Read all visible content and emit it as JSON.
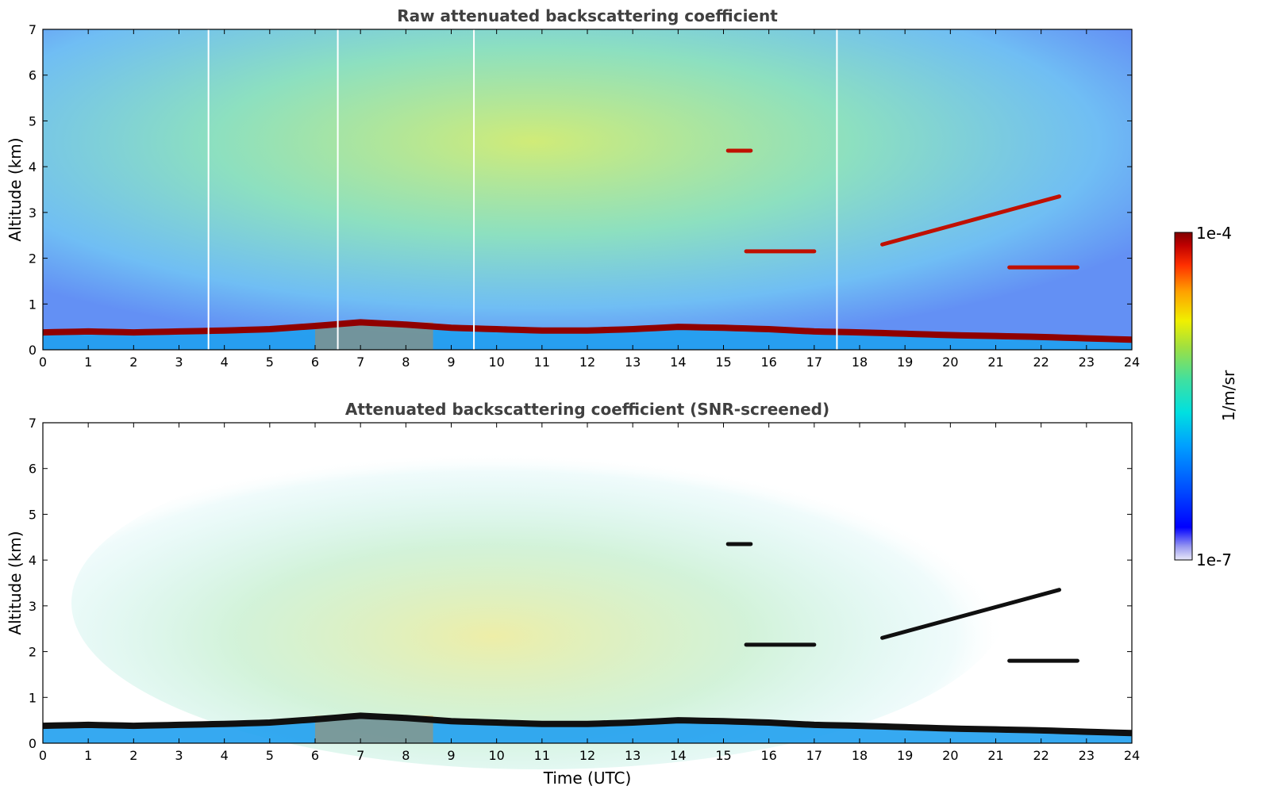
{
  "chart_data": [
    {
      "type": "heatmap",
      "title": "Raw attenuated backscattering coefficient",
      "xlabel": "",
      "ylabel": "Altitude (km)",
      "xlim": [
        0,
        24
      ],
      "ylim": [
        0,
        7
      ],
      "xticks": [
        "0",
        "1",
        "2",
        "3",
        "4",
        "5",
        "6",
        "7",
        "8",
        "9",
        "10",
        "11",
        "12",
        "13",
        "14",
        "15",
        "16",
        "17",
        "18",
        "19",
        "20",
        "21",
        "22",
        "23",
        "24"
      ],
      "yticks": [
        "0",
        "1",
        "2",
        "3",
        "4",
        "5",
        "6",
        "7"
      ],
      "variable": "attenuated backscattering coefficient",
      "features": {
        "boundary_layer_top_km": [
          0.38,
          0.4,
          0.38,
          0.4,
          0.42,
          0.45,
          0.52,
          0.6,
          0.55,
          0.48,
          0.45,
          0.42,
          0.42,
          0.45,
          0.5,
          0.48,
          0.45,
          0.4,
          0.38,
          0.35,
          0.32,
          0.3,
          0.28,
          0.25,
          0.22
        ],
        "elevated_layers": [
          {
            "time_start": 15.1,
            "time_end": 15.6,
            "altitude_km": 4.35
          },
          {
            "time_start": 15.5,
            "time_end": 17.0,
            "altitude_km": 2.15
          },
          {
            "time_start": 18.5,
            "time_end": 22.4,
            "altitude_km_start": 2.3,
            "altitude_km_end": 3.35
          },
          {
            "time_start": 21.3,
            "time_end": 22.8,
            "altitude_km": 1.8
          }
        ],
        "data_gaps_hours": [
          3.65,
          6.5,
          9.5,
          17.5
        ]
      }
    },
    {
      "type": "heatmap",
      "title": "Attenuated backscattering coefficient (SNR-screened)",
      "xlabel": "Time (UTC)",
      "ylabel": "Altitude (km)",
      "xlim": [
        0,
        24
      ],
      "ylim": [
        0,
        7
      ],
      "xticks": [
        "0",
        "1",
        "2",
        "3",
        "4",
        "5",
        "6",
        "7",
        "8",
        "9",
        "10",
        "11",
        "12",
        "13",
        "14",
        "15",
        "16",
        "17",
        "18",
        "19",
        "20",
        "21",
        "22",
        "23",
        "24"
      ],
      "yticks": [
        "0",
        "1",
        "2",
        "3",
        "4",
        "5",
        "6",
        "7"
      ],
      "variable": "attenuated backscattering coefficient",
      "features": {
        "boundary_layer_top_km": [
          0.38,
          0.4,
          0.38,
          0.4,
          0.42,
          0.45,
          0.52,
          0.6,
          0.55,
          0.48,
          0.45,
          0.42,
          0.42,
          0.45,
          0.5,
          0.48,
          0.45,
          0.4,
          0.38,
          0.35,
          0.32,
          0.3,
          0.28,
          0.25,
          0.22
        ],
        "elevated_layers": [
          {
            "time_start": 15.1,
            "time_end": 15.6,
            "altitude_km": 4.35
          },
          {
            "time_start": 15.5,
            "time_end": 17.0,
            "altitude_km": 2.15
          },
          {
            "time_start": 18.5,
            "time_end": 22.4,
            "altitude_km_start": 2.3,
            "altitude_km_end": 3.35
          },
          {
            "time_start": 21.3,
            "time_end": 22.8,
            "altitude_km": 1.8
          }
        ]
      }
    }
  ],
  "colorbar": {
    "label": "1/m/sr",
    "max_label": "1e-4",
    "min_label": "1e-7",
    "scale": "log",
    "range": [
      1e-07,
      0.0001
    ],
    "colormap": [
      "#e8e8f8",
      "#9a9af0",
      "#0000ff",
      "#0050ff",
      "#00a0ff",
      "#00e0e0",
      "#40e0a0",
      "#a0e040",
      "#f0f000",
      "#ffa000",
      "#ff3000",
      "#c00000",
      "#800000"
    ]
  }
}
